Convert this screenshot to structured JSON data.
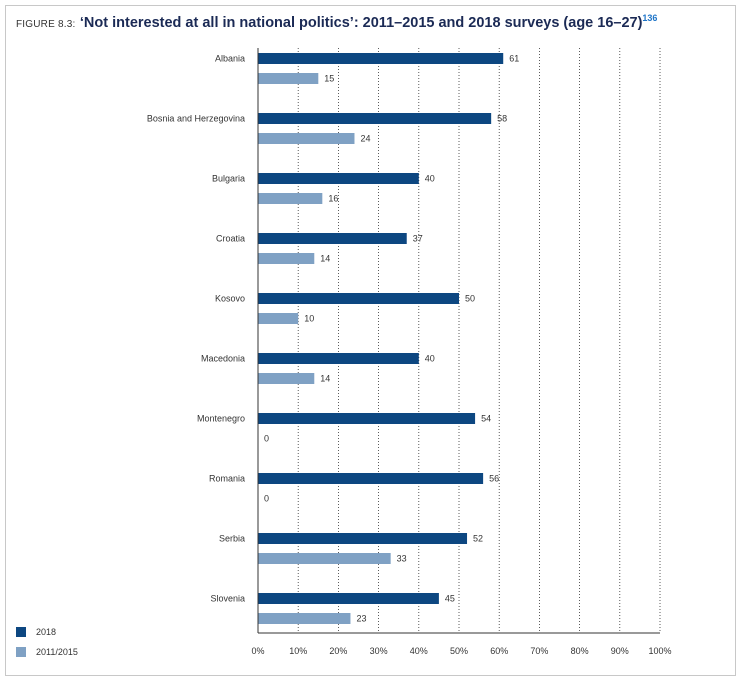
{
  "header": {
    "figure_label": "FIGURE 8.3:",
    "title": "‘Not interested at all in national politics’: 2011–2015 and 2018 surveys (age 16–27)",
    "footnote": "136"
  },
  "colors": {
    "series_2018": "#0d4781",
    "series_2011_2015": "#7fa1c4",
    "grid": "#333333",
    "text": "#333333"
  },
  "chart_data": {
    "type": "bar",
    "orientation": "horizontal",
    "categories": [
      "Albania",
      "Bosnia and Herzegovina",
      "Bulgaria",
      "Croatia",
      "Kosovo",
      "Macedonia",
      "Montenegro",
      "Romania",
      "Serbia",
      "Slovenia"
    ],
    "series": [
      {
        "name": "2018",
        "values": [
          61,
          58,
          40,
          37,
          50,
          40,
          54,
          56,
          52,
          45
        ]
      },
      {
        "name": "2011/2015",
        "values": [
          15,
          24,
          16,
          14,
          10,
          14,
          0,
          0,
          33,
          23
        ]
      }
    ],
    "xlim": [
      0,
      100
    ],
    "x_ticks": [
      "0%",
      "10%",
      "20%",
      "30%",
      "40%",
      "50%",
      "60%",
      "70%",
      "80%",
      "90%",
      "100%"
    ],
    "grid": "dotted vertical",
    "legend_position": "bottom-left",
    "data_labels": true
  }
}
